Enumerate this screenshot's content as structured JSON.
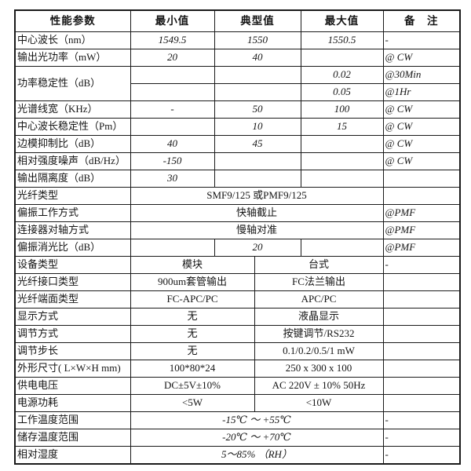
{
  "page": {
    "background": "#ffffff",
    "border_color": "#1a1a1a",
    "text_color": "#151515"
  },
  "table": {
    "header": {
      "param": "性能参数",
      "min": "最小值",
      "typ": "典型值",
      "max": "最大值",
      "note": "备　注"
    },
    "rows": [
      {
        "kind": "normal",
        "param": "中心波长（nm）",
        "min": "1549.5",
        "typ": "1550",
        "max": "1550.5",
        "note": "-",
        "italic_values": true,
        "italic_note": true
      },
      {
        "kind": "normal",
        "param": "输出光功率（mW）",
        "min": "20",
        "typ": "40",
        "max": "",
        "note": "@ CW",
        "italic_values": true,
        "italic_note": true
      },
      {
        "kind": "double",
        "param": "功率稳定性（dB）",
        "italic_values": true,
        "sub": [
          {
            "min": "",
            "typ": "",
            "max": "0.02",
            "note": "@30Min",
            "italic_note": true
          },
          {
            "min": "",
            "typ": "",
            "max": "0.05",
            "note": "@1Hr",
            "italic_note": true
          }
        ]
      },
      {
        "kind": "normal",
        "param": "光谱线宽（KHz）",
        "min": "-",
        "typ": "50",
        "max": "100",
        "note": "@ CW",
        "italic_values": true,
        "italic_note": true
      },
      {
        "kind": "normal",
        "param": "中心波长稳定性（Pm）",
        "min": "",
        "typ": "10",
        "max": "15",
        "note": "@ CW",
        "italic_values": true,
        "italic_note": true
      },
      {
        "kind": "normal",
        "param": "边模抑制比（dB）",
        "min": "40",
        "typ": "45",
        "max": "",
        "note": "@ CW",
        "italic_values": true,
        "italic_note": true
      },
      {
        "kind": "normal",
        "param": "相对强度噪声（dB/Hz）",
        "min": "-150",
        "typ": "",
        "max": "",
        "note": "@ CW",
        "italic_values": true,
        "italic_note": true
      },
      {
        "kind": "normal",
        "param": "输出隔离度（dB）",
        "min": "30",
        "typ": "",
        "max": "",
        "note": "",
        "italic_values": true,
        "italic_note": false
      },
      {
        "kind": "span3",
        "param": "光纤类型",
        "value": "SMF9/125 或PMF9/125",
        "note": "",
        "italic_values": false,
        "italic_note": false
      },
      {
        "kind": "span3",
        "param": "偏振工作方式",
        "value": "快轴截止",
        "note": "@PMF",
        "italic_values": false,
        "italic_note": true
      },
      {
        "kind": "span3",
        "param": "连接器对轴方式",
        "value": "慢轴对准",
        "note": "@PMF",
        "italic_values": false,
        "italic_note": true
      },
      {
        "kind": "normal",
        "param": "偏振消光比（dB）",
        "min": "",
        "typ": "20",
        "max": "",
        "note": "@PMF",
        "italic_values": true,
        "italic_note": true
      },
      {
        "kind": "split2",
        "param": "设备类型",
        "left": "模块",
        "right": "台式",
        "note": "-",
        "italic_values": false,
        "italic_note": false
      },
      {
        "kind": "split2",
        "param": "光纤接口类型",
        "left": "900um套管输出",
        "right": "FC法兰输出",
        "note": "",
        "italic_values": false,
        "italic_note": false
      },
      {
        "kind": "split2",
        "param": "光纤端面类型",
        "left": "FC-APC/PC",
        "right": "APC/PC",
        "note": "",
        "italic_values": false,
        "italic_note": false
      },
      {
        "kind": "split2",
        "param": "显示方式",
        "left": "无",
        "right": "液晶显示",
        "note": "",
        "italic_values": false,
        "italic_note": false
      },
      {
        "kind": "split2",
        "param": "调节方式",
        "left": "无",
        "right": "按键调节/RS232",
        "note": "",
        "italic_values": false,
        "italic_note": false
      },
      {
        "kind": "split2",
        "param": "调节步长",
        "left": "无",
        "right": "0.1/0.2/0.5/1 mW",
        "note": "",
        "italic_values": false,
        "italic_note": false
      },
      {
        "kind": "split2",
        "param": "外形尺寸( L×W×H mm)",
        "left": "100*80*24",
        "right": "250 x 300 x 100",
        "note": "",
        "italic_values": false,
        "italic_note": false
      },
      {
        "kind": "split2",
        "param": "供电电压",
        "left": "DC±5V±10%",
        "right": "AC 220V ± 10% 50Hz",
        "note": "",
        "italic_values": false,
        "italic_note": false
      },
      {
        "kind": "split2",
        "param": "电源功耗",
        "left": "<5W",
        "right": "<10W",
        "note": "",
        "italic_values": false,
        "italic_note": false
      },
      {
        "kind": "span3",
        "param": "工作温度范围",
        "value": "-15℃ ～ +55℃",
        "note": "-",
        "italic_values": true,
        "italic_note": true
      },
      {
        "kind": "span3",
        "param": "储存温度范围",
        "value": "-20℃ ～ +70℃",
        "note": "-",
        "italic_values": true,
        "italic_note": true
      },
      {
        "kind": "span3",
        "param": "相对湿度",
        "value": "5～85% （RH）",
        "note": "-",
        "italic_values": true,
        "italic_note": true
      }
    ]
  }
}
